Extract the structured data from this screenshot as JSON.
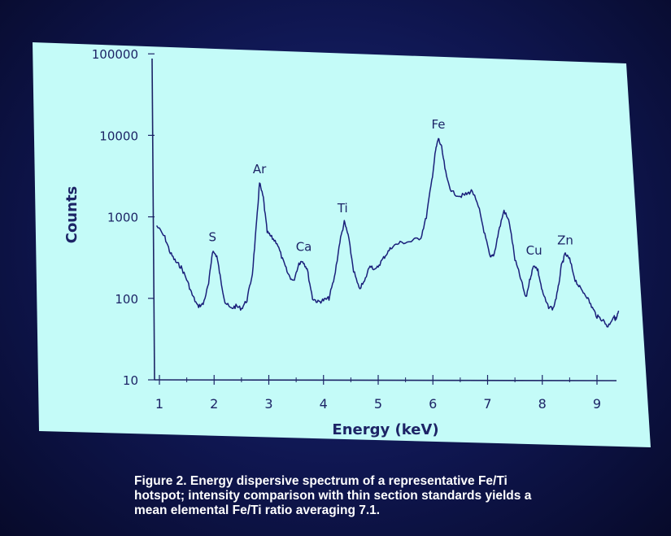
{
  "chart_data": {
    "type": "line",
    "xlabel": "Energy (keV)",
    "ylabel": "Counts",
    "y_scale": "log",
    "xlim": [
      0.95,
      9.5
    ],
    "ylim": [
      10,
      100000
    ],
    "x_ticks": [
      "1",
      "2",
      "3",
      "4",
      "5",
      "6",
      "7",
      "8",
      "9"
    ],
    "y_ticks": [
      "10",
      "100",
      "1000",
      "10000",
      "100000"
    ],
    "series": [
      {
        "values": [
          [
            0.95,
            780
          ],
          [
            1.1,
            560
          ],
          [
            1.2,
            360
          ],
          [
            1.3,
            280
          ],
          [
            1.4,
            240
          ],
          [
            1.5,
            170
          ],
          [
            1.6,
            110
          ],
          [
            1.7,
            80
          ],
          [
            1.8,
            85
          ],
          [
            1.9,
            150
          ],
          [
            1.97,
            380
          ],
          [
            2.05,
            330
          ],
          [
            2.12,
            170
          ],
          [
            2.2,
            90
          ],
          [
            2.3,
            75
          ],
          [
            2.4,
            80
          ],
          [
            2.5,
            75
          ],
          [
            2.6,
            95
          ],
          [
            2.7,
            200
          ],
          [
            2.78,
            900
          ],
          [
            2.83,
            2600
          ],
          [
            2.9,
            1700
          ],
          [
            2.97,
            650
          ],
          [
            3.05,
            560
          ],
          [
            3.15,
            480
          ],
          [
            3.25,
            300
          ],
          [
            3.35,
            200
          ],
          [
            3.45,
            160
          ],
          [
            3.55,
            270
          ],
          [
            3.62,
            290
          ],
          [
            3.7,
            230
          ],
          [
            3.8,
            100
          ],
          [
            3.9,
            90
          ],
          [
            4.0,
            95
          ],
          [
            4.1,
            100
          ],
          [
            4.2,
            180
          ],
          [
            4.3,
            500
          ],
          [
            4.38,
            860
          ],
          [
            4.45,
            600
          ],
          [
            4.55,
            220
          ],
          [
            4.65,
            130
          ],
          [
            4.75,
            160
          ],
          [
            4.85,
            260
          ],
          [
            4.95,
            220
          ],
          [
            5.05,
            280
          ],
          [
            5.15,
            350
          ],
          [
            5.25,
            430
          ],
          [
            5.4,
            480
          ],
          [
            5.6,
            500
          ],
          [
            5.78,
            560
          ],
          [
            5.88,
            1000
          ],
          [
            5.98,
            2800
          ],
          [
            6.05,
            6500
          ],
          [
            6.1,
            9200
          ],
          [
            6.16,
            7000
          ],
          [
            6.25,
            3000
          ],
          [
            6.35,
            2000
          ],
          [
            6.5,
            1800
          ],
          [
            6.62,
            1900
          ],
          [
            6.72,
            2100
          ],
          [
            6.85,
            1200
          ],
          [
            6.95,
            600
          ],
          [
            7.05,
            310
          ],
          [
            7.12,
            350
          ],
          [
            7.2,
            650
          ],
          [
            7.3,
            1200
          ],
          [
            7.4,
            850
          ],
          [
            7.5,
            300
          ],
          [
            7.6,
            180
          ],
          [
            7.7,
            100
          ],
          [
            7.78,
            180
          ],
          [
            7.85,
            260
          ],
          [
            7.92,
            220
          ],
          [
            8.0,
            120
          ],
          [
            8.1,
            80
          ],
          [
            8.2,
            75
          ],
          [
            8.28,
            120
          ],
          [
            8.35,
            250
          ],
          [
            8.42,
            350
          ],
          [
            8.5,
            300
          ],
          [
            8.6,
            170
          ],
          [
            8.7,
            130
          ],
          [
            8.8,
            110
          ],
          [
            8.9,
            80
          ],
          [
            9.0,
            60
          ],
          [
            9.1,
            55
          ],
          [
            9.2,
            45
          ],
          [
            9.3,
            60
          ],
          [
            9.35,
            55
          ],
          [
            9.4,
            70
          ]
        ]
      }
    ],
    "annotations": [
      {
        "label": "S",
        "x": 1.97,
        "y": 380
      },
      {
        "label": "Ar",
        "x": 2.83,
        "y": 2600
      },
      {
        "label": "Ca",
        "x": 3.64,
        "y": 290
      },
      {
        "label": "Ti",
        "x": 4.35,
        "y": 860
      },
      {
        "label": "Fe",
        "x": 6.1,
        "y": 9200
      },
      {
        "label": "Cu",
        "x": 7.85,
        "y": 260
      },
      {
        "label": "Zn",
        "x": 8.42,
        "y": 350
      }
    ],
    "grid": false,
    "colors": {
      "plot_background": "#c4fbf8",
      "line": "#1a1f7a",
      "axis": "#1d2466",
      "text": "#1d2466"
    }
  },
  "caption": {
    "line1": "Figure 2.  Energy dispersive spectrum of a representative Fe/Ti",
    "line2": "hotspot; intensity comparison with thin section standards yields a",
    "line3": "mean elemental Fe/Ti ratio averaging 7.1."
  }
}
